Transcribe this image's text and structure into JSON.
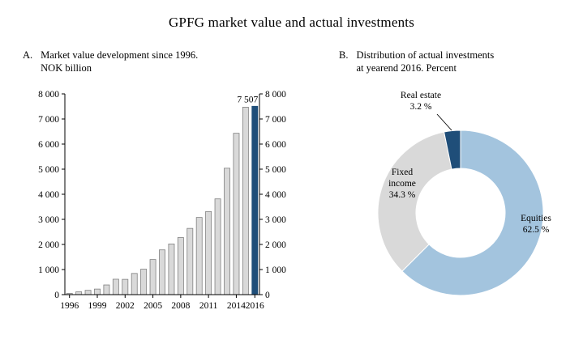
{
  "title": "GPFG market value and actual investments",
  "panel_a": {
    "label": "A.",
    "line1": "Market value development since 1996.",
    "line2": "NOK billion"
  },
  "panel_b": {
    "label": "B.",
    "line1": "Distribution of actual investments",
    "line2": "at yearend 2016. Percent"
  },
  "chart_data": [
    {
      "type": "bar",
      "title": "Market value development since 1996. NOK billion",
      "x": [
        1996,
        1997,
        1998,
        1999,
        2000,
        2001,
        2002,
        2003,
        2004,
        2005,
        2006,
        2007,
        2008,
        2009,
        2010,
        2011,
        2012,
        2013,
        2014,
        2015,
        2016
      ],
      "values": [
        48,
        113,
        172,
        222,
        386,
        614,
        609,
        845,
        1016,
        1399,
        1784,
        2019,
        2275,
        2640,
        3077,
        3312,
        3816,
        5038,
        6431,
        7471,
        7507
      ],
      "ylim": [
        0,
        8000
      ],
      "ytick_labels": [
        "0",
        "1 000",
        "2 000",
        "3 000",
        "4 000",
        "5 000",
        "6 000",
        "7 000",
        "8 000"
      ],
      "xticks": [
        1996,
        1999,
        2002,
        2005,
        2008,
        2011,
        2014,
        2016
      ],
      "bar_color": "#d9d9d9",
      "bar_border": "#808080",
      "highlight_index": 20,
      "highlight_color": "#1f4e79",
      "annotation": {
        "text": "7 507",
        "index": 20
      },
      "grid": false,
      "legend": "none"
    },
    {
      "type": "pie",
      "subtype": "donut",
      "title": "Distribution of actual investments at yearend 2016. Percent",
      "start_angle_deg": 0,
      "direction": "clockwise",
      "slices": [
        {
          "label": "Equities",
          "label_lines": [
            "Equities"
          ],
          "value": 62.5,
          "value_label": "62.5 %",
          "color": "#a3c4de"
        },
        {
          "label": "Fixed income",
          "label_lines": [
            "Fixed",
            "income"
          ],
          "value": 34.3,
          "value_label": "34.3 %",
          "color": "#d9d9d9"
        },
        {
          "label": "Real estate",
          "label_lines": [
            "Real estate"
          ],
          "value": 3.2,
          "value_label": "3.2 %",
          "color": "#1f4e79"
        }
      ]
    }
  ]
}
